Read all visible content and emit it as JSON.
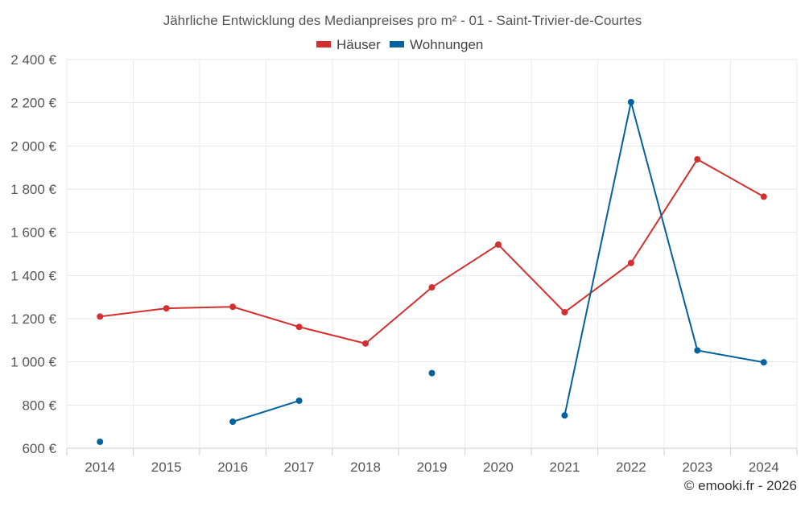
{
  "chart_data": {
    "type": "line",
    "title": "Jährliche Entwicklung des Medianpreises pro m² - 01 - Saint-Trivier-de-Courtes",
    "categories": [
      "2014",
      "2015",
      "2016",
      "2017",
      "2018",
      "2019",
      "2020",
      "2021",
      "2022",
      "2023",
      "2024"
    ],
    "ylim": [
      600,
      2400
    ],
    "yticks": [
      600,
      800,
      1000,
      1200,
      1400,
      1600,
      1800,
      2000,
      2200,
      2400
    ],
    "ytick_labels": [
      "600 €",
      "800 €",
      "1 000 €",
      "1 200 €",
      "1 400 €",
      "1 600 €",
      "1 800 €",
      "2 000 €",
      "2 200 €",
      "2 400 €"
    ],
    "grid": true,
    "legend_position": "top-center",
    "series": [
      {
        "name": "Häuser",
        "color": "#d32f2f",
        "values": [
          1210,
          1248,
          1255,
          1162,
          1085,
          1345,
          1543,
          1230,
          1458,
          1938,
          1765
        ]
      },
      {
        "name": "Wohnungen",
        "color": "#01629f",
        "values": [
          630,
          null,
          723,
          820,
          null,
          948,
          null,
          752,
          2203,
          1053,
          998
        ]
      }
    ],
    "credit": "© emooki.fr - 2026"
  }
}
